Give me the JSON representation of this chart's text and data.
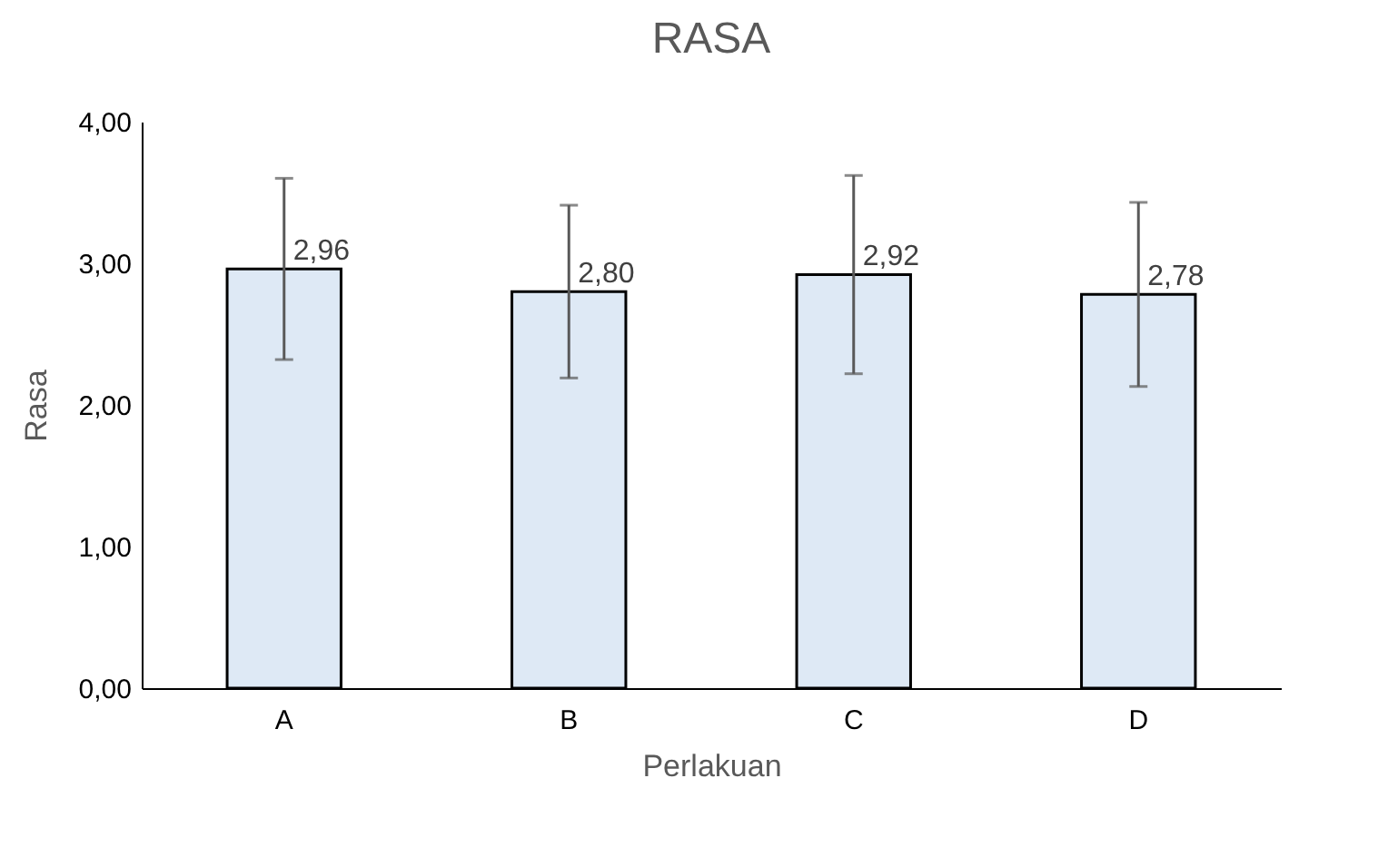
{
  "chart_data": {
    "type": "bar",
    "title": "RASA",
    "xlabel": "Perlakuan",
    "ylabel": "Rasa",
    "categories": [
      "A",
      "B",
      "C",
      "D"
    ],
    "values": [
      2.96,
      2.8,
      2.92,
      2.78
    ],
    "errors": [
      0.64,
      0.61,
      0.7,
      0.65
    ],
    "value_labels": [
      "2,96",
      "2,80",
      "2,92",
      "2,78"
    ],
    "color": "#dee9f5",
    "ylim": [
      0,
      4
    ],
    "yticks": [
      {
        "value": 0,
        "label": "0,00"
      },
      {
        "value": 1,
        "label": "1,00"
      },
      {
        "value": 2,
        "label": "2,00"
      },
      {
        "value": 3,
        "label": "3,00"
      },
      {
        "value": 4,
        "label": "4,00"
      }
    ],
    "grid": false
  }
}
